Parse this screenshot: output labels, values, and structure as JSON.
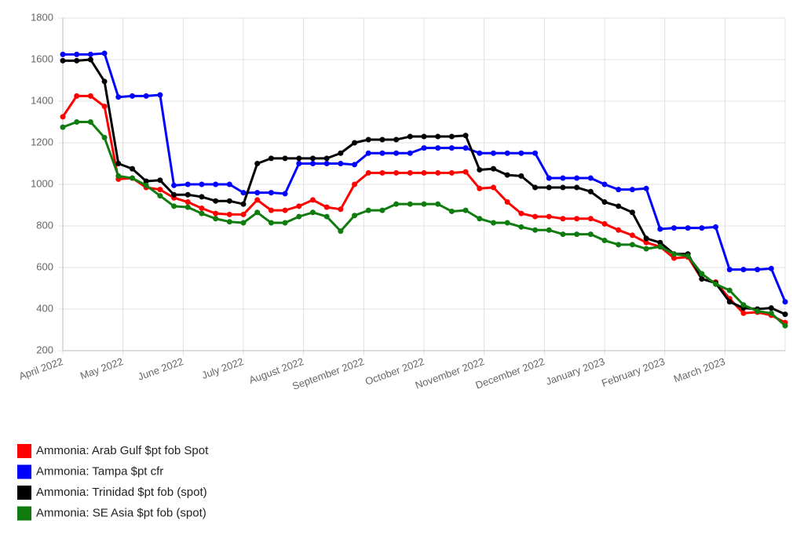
{
  "chart_data": {
    "type": "line",
    "x": [
      0,
      1,
      2,
      3,
      4,
      5,
      6,
      7,
      8,
      9,
      10,
      11,
      12,
      13,
      14,
      15,
      16,
      17,
      18,
      19,
      20,
      21,
      22,
      23,
      24,
      25,
      26,
      27,
      28,
      29,
      30,
      31,
      32,
      33,
      34,
      35,
      36,
      37,
      38,
      39,
      40,
      41,
      42,
      43,
      44,
      45,
      46,
      47,
      48,
      49,
      50,
      51,
      52
    ],
    "xlim": [
      0,
      52
    ],
    "xticks": [
      {
        "value": 0,
        "label": "April 2022"
      },
      {
        "value": 4.33,
        "label": "May 2022"
      },
      {
        "value": 8.67,
        "label": "June 2022"
      },
      {
        "value": 13,
        "label": "July 2022"
      },
      {
        "value": 17.33,
        "label": "August 2022"
      },
      {
        "value": 21.67,
        "label": "September 2022"
      },
      {
        "value": 26,
        "label": "October 2022"
      },
      {
        "value": 30.33,
        "label": "November 2022"
      },
      {
        "value": 34.67,
        "label": "December 2022"
      },
      {
        "value": 39,
        "label": "January 2023"
      },
      {
        "value": 43.33,
        "label": "February 2023"
      },
      {
        "value": 47.67,
        "label": "March 2023"
      }
    ],
    "ylim": [
      200,
      1800
    ],
    "yticks": [
      200,
      400,
      600,
      800,
      1000,
      1200,
      1400,
      1600,
      1800
    ],
    "grid": true,
    "legend": "bottom-left",
    "series": [
      {
        "name": "Ammonia: Arab Gulf $pt fob Spot",
        "color": "#ff0000",
        "values": [
          1325,
          1425,
          1425,
          1375,
          1025,
          1030,
          985,
          975,
          935,
          915,
          885,
          860,
          855,
          855,
          925,
          875,
          875,
          895,
          925,
          890,
          880,
          1000,
          1055,
          1055,
          1055,
          1055,
          1055,
          1055,
          1055,
          1060,
          980,
          985,
          915,
          860,
          845,
          845,
          835,
          835,
          835,
          810,
          780,
          755,
          720,
          700,
          645,
          650,
          545,
          530,
          450,
          380,
          385,
          370,
          335
        ]
      },
      {
        "name": "Ammonia: Tampa $pt cfr",
        "color": "#0000ff",
        "values": [
          1625,
          1625,
          1625,
          1630,
          1420,
          1425,
          1425,
          1430,
          995,
          1000,
          1000,
          1000,
          1000,
          960,
          960,
          960,
          955,
          1100,
          1100,
          1100,
          1100,
          1095,
          1150,
          1150,
          1150,
          1150,
          1175,
          1175,
          1175,
          1175,
          1150,
          1150,
          1150,
          1150,
          1150,
          1030,
          1030,
          1030,
          1030,
          1000,
          975,
          975,
          980,
          785,
          790,
          790,
          790,
          795,
          590,
          590,
          590,
          595,
          435
        ]
      },
      {
        "name": "Ammonia: Trinidad $pt fob (spot)",
        "color": "#000000",
        "values": [
          1595,
          1595,
          1600,
          1495,
          1100,
          1075,
          1015,
          1020,
          950,
          950,
          940,
          920,
          920,
          905,
          1100,
          1125,
          1125,
          1125,
          1125,
          1125,
          1150,
          1200,
          1215,
          1215,
          1215,
          1230,
          1230,
          1230,
          1230,
          1235,
          1070,
          1075,
          1045,
          1040,
          985,
          985,
          985,
          985,
          965,
          915,
          895,
          865,
          740,
          720,
          665,
          665,
          545,
          525,
          435,
          405,
          400,
          405,
          375
        ]
      },
      {
        "name": "Ammonia: SE Asia $pt fob (spot)",
        "color": "#107c10",
        "values": [
          1275,
          1300,
          1300,
          1225,
          1040,
          1030,
          995,
          945,
          895,
          890,
          860,
          835,
          820,
          815,
          865,
          815,
          815,
          845,
          865,
          845,
          775,
          850,
          875,
          875,
          905,
          905,
          905,
          905,
          870,
          875,
          835,
          815,
          815,
          795,
          780,
          780,
          760,
          760,
          760,
          730,
          710,
          710,
          690,
          700,
          665,
          655,
          570,
          520,
          490,
          420,
          390,
          380,
          320
        ]
      }
    ]
  }
}
